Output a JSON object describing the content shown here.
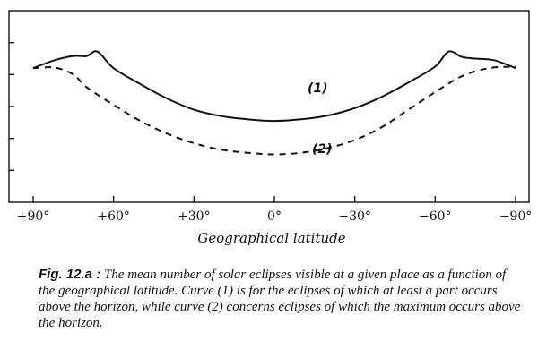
{
  "chart_data": {
    "type": "line",
    "xlabel": "Geographical latitude",
    "x_ticks": [
      {
        "value": 90,
        "label": "+90°"
      },
      {
        "value": 60,
        "label": "+60°"
      },
      {
        "value": 30,
        "label": "+30°"
      },
      {
        "value": 0,
        "label": "0°"
      },
      {
        "value": -30,
        "label": "−30°"
      },
      {
        "value": -60,
        "label": "−60°"
      },
      {
        "value": -90,
        "label": "−90°"
      }
    ],
    "xlim": [
      90,
      -90
    ],
    "ylim": [
      0,
      6
    ],
    "y_tick_values": [
      1,
      2,
      3,
      4,
      5
    ],
    "y_tick_labels_shown": false,
    "grid": false,
    "series": [
      {
        "name": "(1)",
        "style": "solid",
        "points": [
          [
            90,
            4.2
          ],
          [
            82,
            4.45
          ],
          [
            75,
            4.58
          ],
          [
            70,
            4.58
          ],
          [
            66,
            4.72
          ],
          [
            60,
            4.2
          ],
          [
            50,
            3.7
          ],
          [
            40,
            3.25
          ],
          [
            30,
            2.9
          ],
          [
            20,
            2.7
          ],
          [
            10,
            2.6
          ],
          [
            0,
            2.55
          ],
          [
            -10,
            2.6
          ],
          [
            -20,
            2.72
          ],
          [
            -30,
            2.95
          ],
          [
            -40,
            3.3
          ],
          [
            -50,
            3.75
          ],
          [
            -60,
            4.25
          ],
          [
            -65,
            4.72
          ],
          [
            -70,
            4.55
          ],
          [
            -75,
            4.5
          ],
          [
            -82,
            4.45
          ],
          [
            -90,
            4.2
          ]
        ]
      },
      {
        "name": "(2)",
        "style": "dashed",
        "points": [
          [
            90,
            4.2
          ],
          [
            82,
            4.22
          ],
          [
            75,
            4.0
          ],
          [
            70,
            3.6
          ],
          [
            60,
            3.05
          ],
          [
            50,
            2.55
          ],
          [
            40,
            2.15
          ],
          [
            30,
            1.85
          ],
          [
            20,
            1.65
          ],
          [
            10,
            1.55
          ],
          [
            0,
            1.5
          ],
          [
            -10,
            1.55
          ],
          [
            -20,
            1.7
          ],
          [
            -30,
            1.95
          ],
          [
            -40,
            2.35
          ],
          [
            -50,
            2.9
          ],
          [
            -60,
            3.45
          ],
          [
            -70,
            3.95
          ],
          [
            -80,
            4.2
          ],
          [
            -90,
            4.25
          ]
        ]
      }
    ]
  },
  "caption": {
    "lead": "Fig. 12.a :",
    "text": " The mean number of solar eclipses visible at a given place as a function of the geographical latitude. Curve (1) is for the eclipses of which at least a part occurs above the horizon, while curve (2) concerns eclipses of which the maximum occurs above the horizon."
  }
}
